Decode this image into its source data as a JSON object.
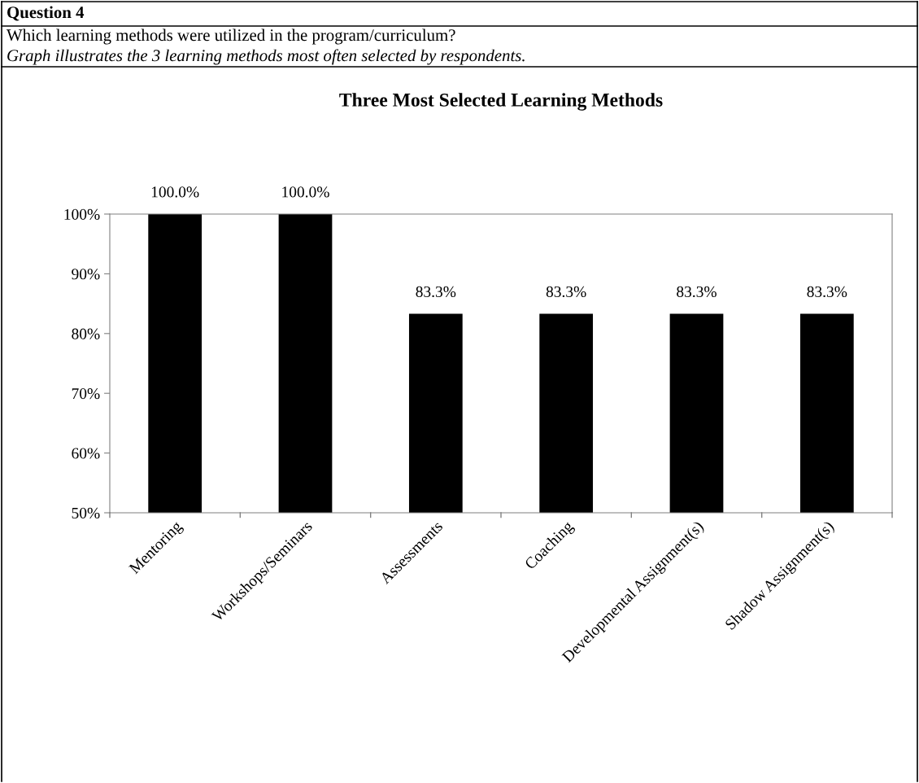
{
  "chart_data": {
    "type": "bar",
    "title": "Three Most Selected Learning Methods",
    "annotations": [
      "Question 4",
      "Which learning methods were utilized in the program/curriculum?",
      "Graph illustrates the 3 learning methods most often selected by respondents."
    ],
    "categories": [
      "Mentoring",
      "Workshops/Seminars",
      "Assessments",
      "Coaching",
      "Developmental Assignment(s)",
      "Shadow Assignment(s)"
    ],
    "values": [
      100.0,
      100.0,
      83.3,
      83.3,
      83.3,
      83.3
    ],
    "value_labels": [
      "100.0%",
      "100.0%",
      "83.3%",
      "83.3%",
      "83.3%",
      "83.3%"
    ],
    "color": "#000000",
    "ylim": [
      50,
      100
    ],
    "yticks": [
      {
        "value": 50,
        "label": "50%"
      },
      {
        "value": 60,
        "label": "60%"
      },
      {
        "value": 70,
        "label": "70%"
      },
      {
        "value": 80,
        "label": "80%"
      },
      {
        "value": 90,
        "label": "90%"
      },
      {
        "value": 100,
        "label": "100%"
      }
    ],
    "grid": false,
    "legend": false
  }
}
